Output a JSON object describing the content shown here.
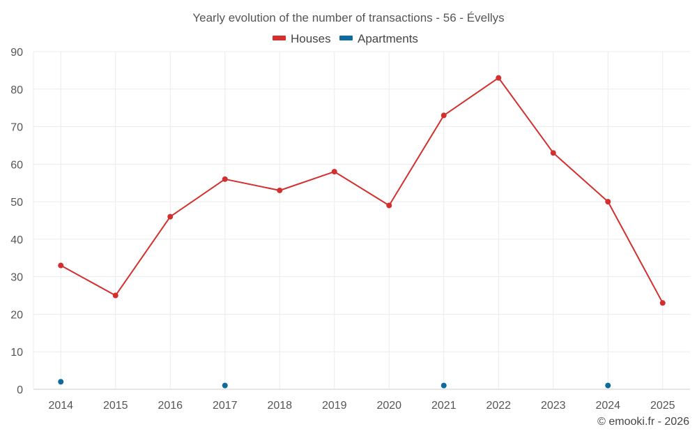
{
  "chart_data": {
    "type": "line",
    "title": "Yearly evolution of the number of transactions - 56 - Évellys",
    "categories": [
      "2014",
      "2015",
      "2016",
      "2017",
      "2018",
      "2019",
      "2020",
      "2021",
      "2022",
      "2023",
      "2024",
      "2025"
    ],
    "series": [
      {
        "name": "Houses",
        "color": "#d32f2f",
        "values": [
          33,
          25,
          46,
          56,
          53,
          58,
          49,
          73,
          83,
          63,
          50,
          23
        ]
      },
      {
        "name": "Apartments",
        "color": "#0f6b9e",
        "values": [
          2,
          null,
          null,
          1,
          null,
          null,
          null,
          1,
          null,
          null,
          1,
          null
        ]
      }
    ],
    "xlabel": "",
    "ylabel": "",
    "ylim": [
      0,
      90
    ],
    "yticks": [
      0,
      10,
      20,
      30,
      40,
      50,
      60,
      70,
      80,
      90
    ],
    "grid": true,
    "legend": "top-center"
  },
  "credit": "© emooki.fr - 2026"
}
